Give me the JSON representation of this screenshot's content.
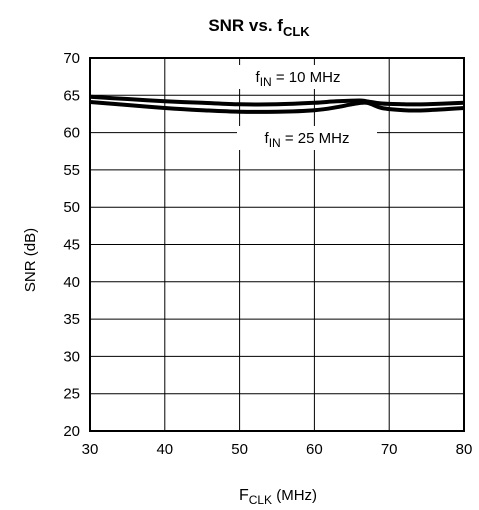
{
  "chart_data": {
    "type": "line",
    "title": {
      "main": "SNR vs. f",
      "sub": "CLK"
    },
    "xlabel": {
      "main": "F",
      "sub": "CLK",
      "rest": " (MHz)"
    },
    "ylabel": "SNR (dB)",
    "xlim": [
      30,
      80
    ],
    "ylim": [
      20,
      70
    ],
    "xticks": [
      30,
      40,
      50,
      60,
      70,
      80
    ],
    "yticks": [
      20,
      25,
      30,
      35,
      40,
      45,
      50,
      55,
      60,
      65,
      70
    ],
    "grid": true,
    "series": [
      {
        "name": "fIN = 10 MHz",
        "x": [
          30,
          35,
          40,
          45,
          50,
          55,
          60,
          63,
          66,
          67,
          69,
          72,
          75,
          80
        ],
        "y": [
          64.8,
          64.5,
          64.2,
          64.0,
          63.8,
          63.8,
          64.0,
          64.2,
          64.3,
          64.2,
          63.9,
          63.8,
          63.8,
          64.0
        ]
      },
      {
        "name": "fIN = 25 MHz",
        "x": [
          30,
          35,
          40,
          45,
          50,
          55,
          60,
          63,
          65,
          67,
          69,
          72,
          75,
          80
        ],
        "y": [
          64.1,
          63.7,
          63.3,
          63.0,
          62.8,
          62.8,
          63.0,
          63.4,
          63.8,
          64.0,
          63.3,
          63.0,
          63.0,
          63.3
        ]
      }
    ],
    "annotations": [
      {
        "pre": "f",
        "sub": "IN",
        "post": " = 10 MHz",
        "series": 0
      },
      {
        "pre": "f",
        "sub": "IN",
        "post": " = 25 MHz",
        "series": 1
      }
    ]
  }
}
